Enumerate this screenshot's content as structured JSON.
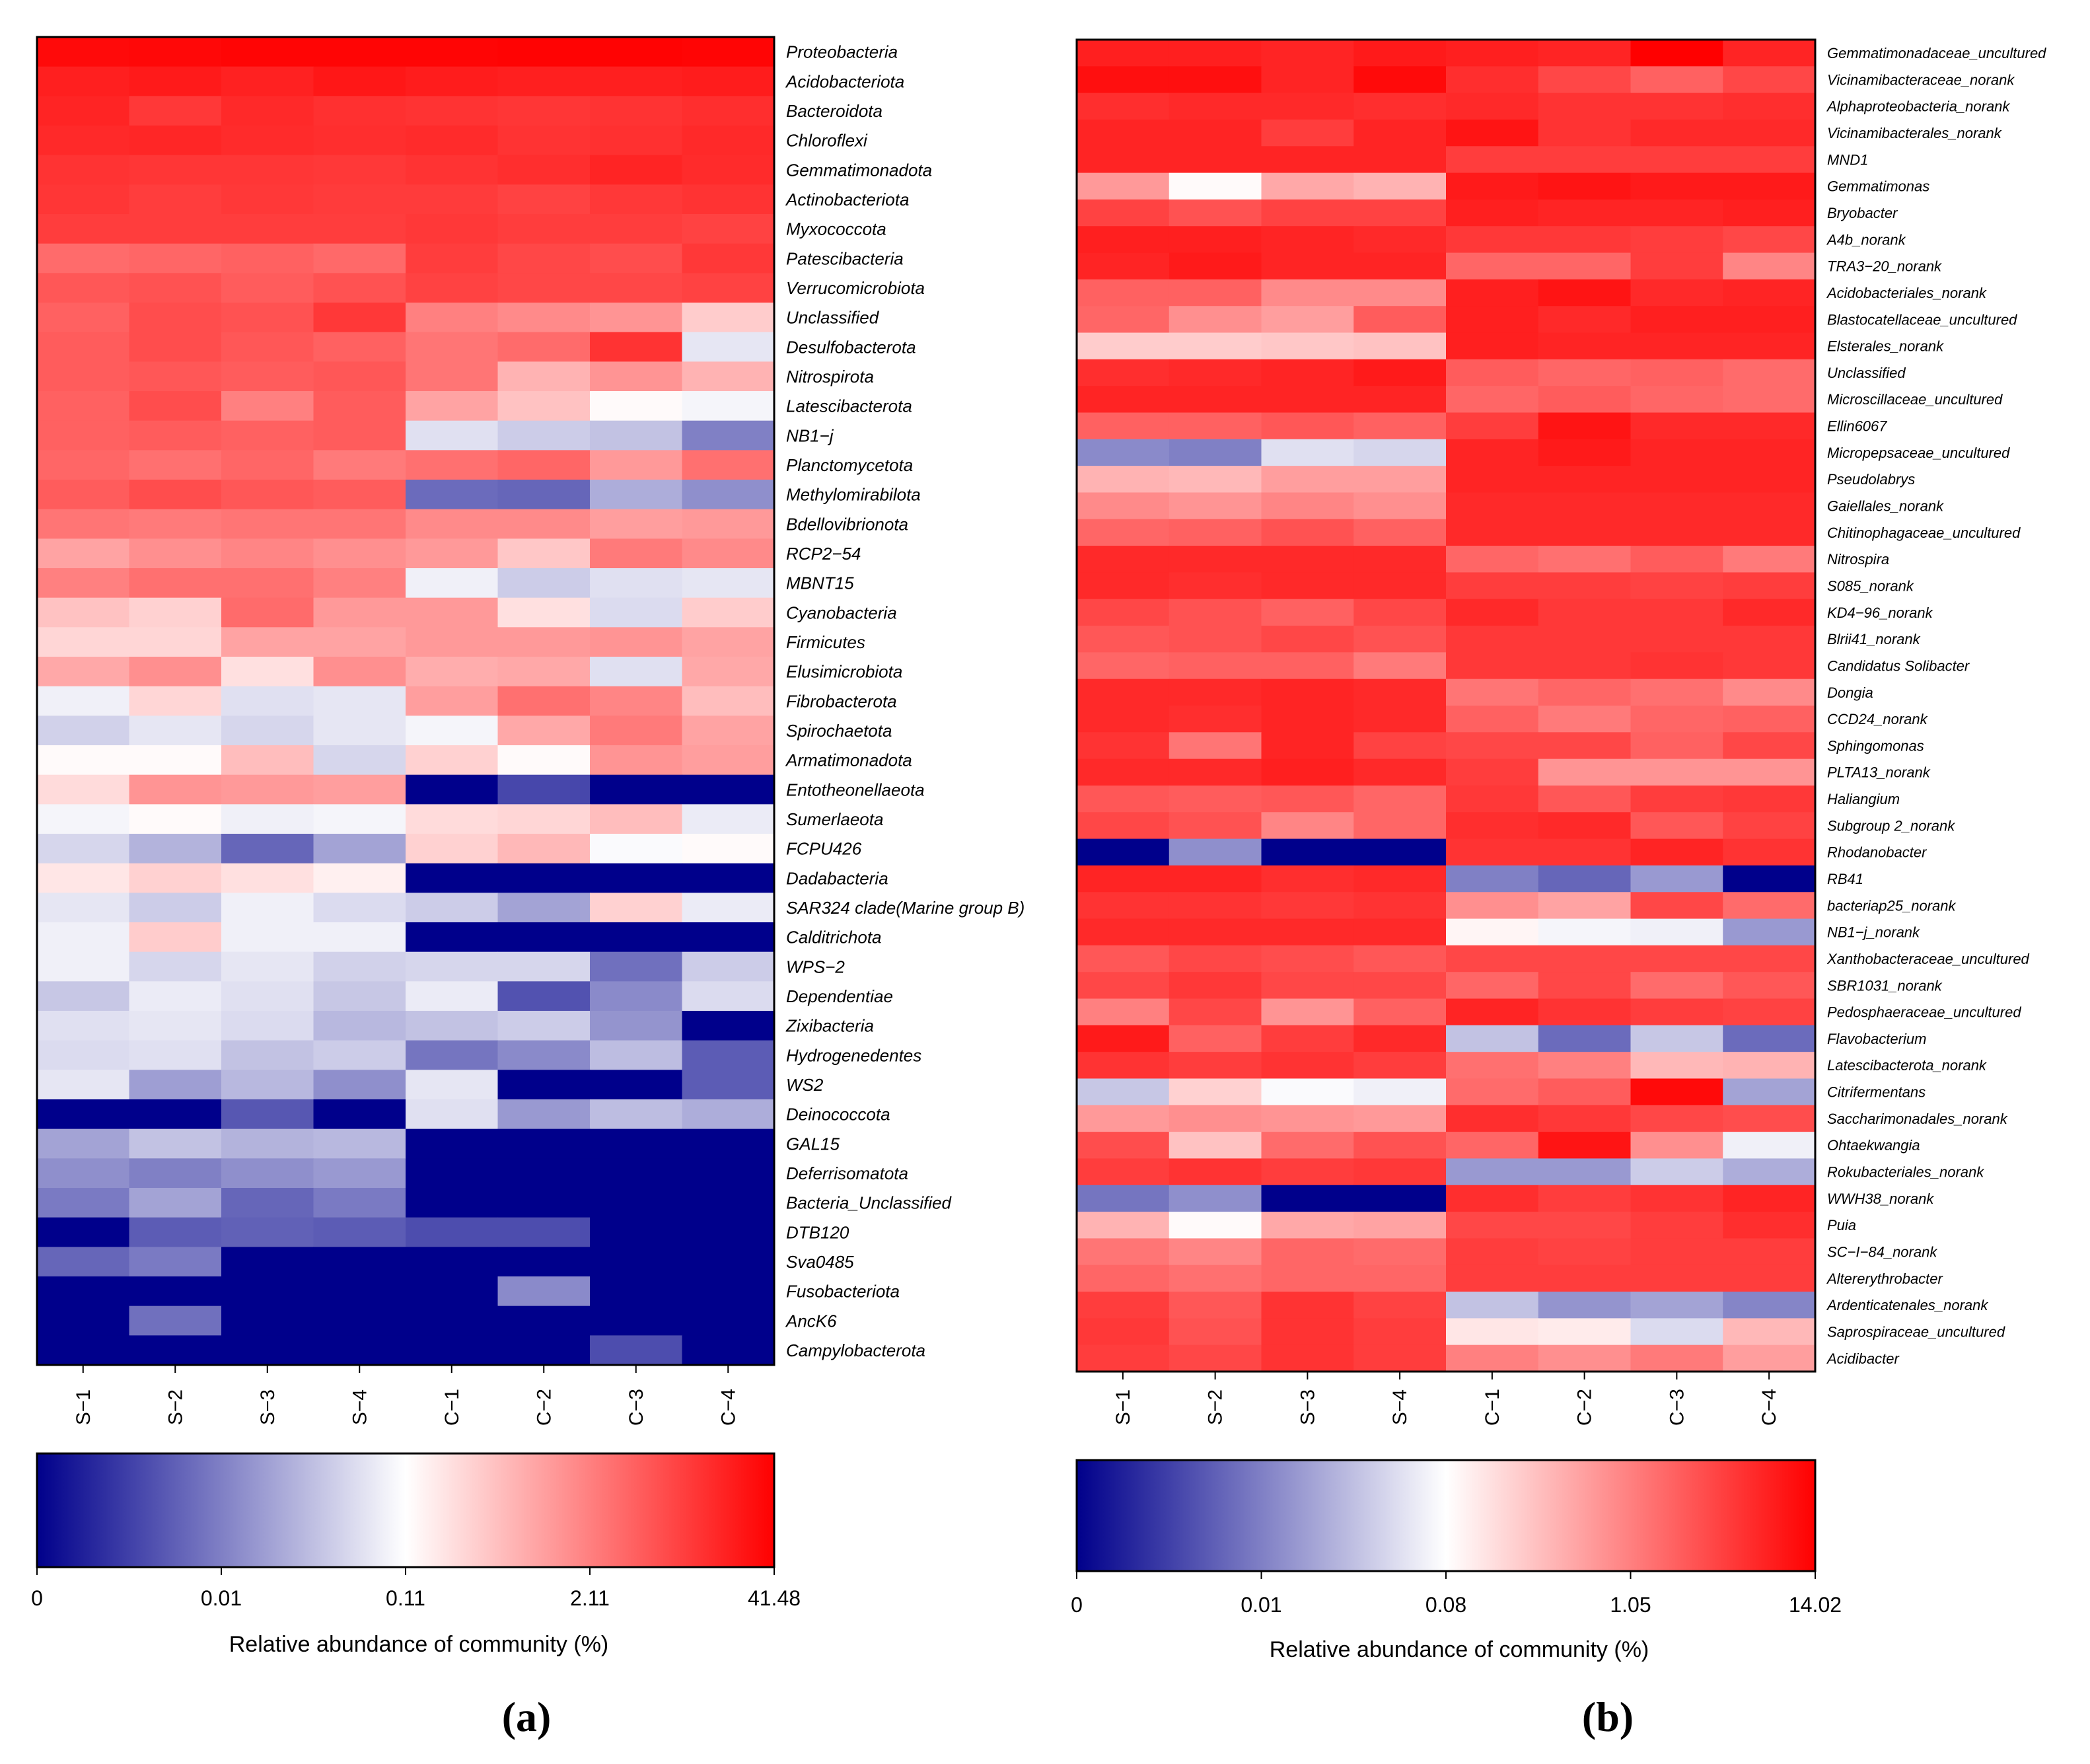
{
  "chart_data": [
    {
      "type": "heatmap",
      "panel_label": "(a)",
      "columns": [
        "S−1",
        "S−2",
        "S−3",
        "S−4",
        "C−1",
        "C−2",
        "C−3",
        "C−4"
      ],
      "rows": [
        "Proteobacteria",
        "Acidobacteriota",
        "Bacteroidota",
        "Chloroflexi",
        "Gemmatimonadota",
        "Actinobacteriota",
        "Myxococcota",
        "Patescibacteria",
        "Verrucomicrobiota",
        "Unclassified",
        "Desulfobacterota",
        "Nitrospirota",
        "Latescibacterota",
        "NB1−j",
        "Planctomycetota",
        "Methylomirabilota",
        "Bdellovibrionota",
        "RCP2−54",
        "MBNT15",
        "Cyanobacteria",
        "Firmicutes",
        "Elusimicrobiota",
        "Fibrobacterota",
        "Spirochaetota",
        "Armatimonadota",
        "Entotheonellaeota",
        "Sumerlaeota",
        "FCPU426",
        "Dadabacteria",
        "SAR324 clade(Marine group B)",
        "Calditrichota",
        "WPS−2",
        "Dependentiae",
        "Zixibacteria",
        "Hydrogenedentes",
        "WS2",
        "Deinococcota",
        "GAL15",
        "Deferrisomatota",
        "Bacteria_Unclassified",
        "DTB120",
        "Sva0485",
        "Fusobacteriota",
        "AncK6",
        "Campylobacterota"
      ],
      "values": [
        [
          0.96,
          0.97,
          0.98,
          0.98,
          0.98,
          0.99,
          0.99,
          0.98
        ],
        [
          0.88,
          0.9,
          0.87,
          0.91,
          0.89,
          0.88,
          0.88,
          0.89
        ],
        [
          0.86,
          0.78,
          0.84,
          0.81,
          0.8,
          0.79,
          0.8,
          0.82
        ],
        [
          0.84,
          0.85,
          0.83,
          0.82,
          0.83,
          0.8,
          0.81,
          0.84
        ],
        [
          0.8,
          0.79,
          0.79,
          0.78,
          0.8,
          0.82,
          0.86,
          0.83
        ],
        [
          0.79,
          0.76,
          0.78,
          0.77,
          0.77,
          0.74,
          0.78,
          0.8
        ],
        [
          0.76,
          0.76,
          0.76,
          0.76,
          0.78,
          0.76,
          0.76,
          0.74
        ],
        [
          0.58,
          0.6,
          0.62,
          0.59,
          0.76,
          0.72,
          0.7,
          0.78
        ],
        [
          0.66,
          0.68,
          0.64,
          0.68,
          0.74,
          0.72,
          0.72,
          0.74
        ],
        [
          0.62,
          0.7,
          0.68,
          0.78,
          0.5,
          0.46,
          0.42,
          0.2
        ],
        [
          0.64,
          0.7,
          0.66,
          0.62,
          0.54,
          0.58,
          0.8,
          -0.1
        ],
        [
          0.64,
          0.66,
          0.64,
          0.66,
          0.54,
          0.3,
          0.42,
          0.3
        ],
        [
          0.62,
          0.7,
          0.5,
          0.64,
          0.36,
          0.24,
          0.02,
          -0.04
        ],
        [
          0.62,
          0.64,
          0.62,
          0.64,
          -0.12,
          -0.2,
          -0.24,
          -0.5
        ],
        [
          0.6,
          0.56,
          0.6,
          0.52,
          0.56,
          0.6,
          0.4,
          0.56
        ],
        [
          0.64,
          0.7,
          0.66,
          0.64,
          -0.58,
          -0.6,
          -0.32,
          -0.44
        ],
        [
          0.54,
          0.52,
          0.54,
          0.54,
          0.46,
          0.46,
          0.38,
          0.4
        ],
        [
          0.36,
          0.44,
          0.48,
          0.44,
          0.4,
          0.22,
          0.52,
          0.46
        ],
        [
          0.5,
          0.56,
          0.56,
          0.5,
          -0.06,
          -0.2,
          -0.12,
          -0.1
        ],
        [
          0.24,
          0.18,
          0.58,
          0.4,
          0.4,
          0.12,
          -0.14,
          0.2
        ],
        [
          0.16,
          0.16,
          0.36,
          0.36,
          0.4,
          0.4,
          0.42,
          0.36
        ],
        [
          0.34,
          0.44,
          0.12,
          0.44,
          0.32,
          0.34,
          -0.12,
          0.34
        ],
        [
          -0.06,
          0.16,
          -0.12,
          -0.1,
          0.38,
          0.56,
          0.48,
          0.26
        ],
        [
          -0.18,
          -0.1,
          -0.16,
          -0.1,
          -0.04,
          0.34,
          0.52,
          0.36
        ],
        [
          0.02,
          0.02,
          0.26,
          -0.16,
          0.18,
          0.02,
          0.42,
          0.38
        ],
        [
          0.14,
          0.42,
          0.4,
          0.38,
          -1,
          -0.72,
          -1,
          -1
        ],
        [
          -0.04,
          0.02,
          -0.06,
          -0.04,
          0.14,
          0.16,
          0.26,
          -0.08
        ],
        [
          -0.16,
          -0.3,
          -0.6,
          -0.36,
          0.18,
          0.28,
          -0.02,
          0.02
        ],
        [
          0.1,
          0.18,
          0.12,
          0.06,
          -1,
          -1,
          -1,
          -1
        ],
        [
          -0.1,
          -0.2,
          -0.06,
          -0.14,
          -0.2,
          -0.36,
          0.18,
          -0.08
        ],
        [
          -0.06,
          0.2,
          -0.06,
          -0.06,
          -1,
          -1,
          -1,
          -1
        ],
        [
          -0.06,
          -0.16,
          -0.1,
          -0.18,
          -0.16,
          -0.16,
          -0.56,
          -0.2
        ],
        [
          -0.22,
          -0.08,
          -0.12,
          -0.22,
          -0.08,
          -0.68,
          -0.46,
          -0.14
        ],
        [
          -0.12,
          -0.1,
          -0.14,
          -0.28,
          -0.24,
          -0.2,
          -0.42,
          -1
        ],
        [
          -0.14,
          -0.12,
          -0.24,
          -0.2,
          -0.54,
          -0.46,
          -0.26,
          -0.64
        ],
        [
          -0.1,
          -0.38,
          -0.28,
          -0.44,
          -0.1,
          -1,
          -1,
          -0.64
        ],
        [
          -1,
          -1,
          -0.66,
          -1,
          -0.12,
          -0.4,
          -0.26,
          -0.32
        ],
        [
          -0.36,
          -0.24,
          -0.3,
          -0.28,
          -1,
          -1,
          -1,
          -1
        ],
        [
          -0.44,
          -0.5,
          -0.44,
          -0.4,
          -1,
          -1,
          -1,
          -1
        ],
        [
          -0.52,
          -0.36,
          -0.6,
          -0.52,
          -1,
          -1,
          -1,
          -1
        ],
        [
          -1,
          -0.64,
          -0.62,
          -0.64,
          -0.7,
          -0.7,
          -1,
          -1
        ],
        [
          -0.6,
          -0.52,
          -1,
          -1,
          -1,
          -1,
          -1,
          -1
        ],
        [
          -1,
          -1,
          -1,
          -1,
          -1,
          -0.46,
          -1,
          -1
        ],
        [
          -1,
          -0.56,
          -1,
          -1,
          -1,
          -1,
          -1,
          -1
        ],
        [
          -1,
          -1,
          -1,
          -1,
          -1,
          -1,
          -0.7,
          -1
        ]
      ],
      "colorbar": {
        "ticks": [
          "0",
          "0.01",
          "0.11",
          "2.11",
          "41.48"
        ],
        "label": "Relative abundance of community (%)",
        "colors": [
          "#00008b",
          "#ffffff",
          "#ff0000"
        ]
      }
    },
    {
      "type": "heatmap",
      "panel_label": "(b)",
      "columns": [
        "S−1",
        "S−2",
        "S−3",
        "S−4",
        "C−1",
        "C−2",
        "C−3",
        "C−4"
      ],
      "rows": [
        "Gemmatimonadaceae_uncultured",
        "Vicinamibacteraceae_norank",
        "Alphaproteobacteria_norank",
        "Vicinamibacterales_norank",
        "MND1",
        "Gemmatimonas",
        "Bryobacter",
        "A4b_norank",
        "TRA3−20_norank",
        "Acidobacteriales_norank",
        "Blastocatellaceae_uncultured",
        "Elsterales_norank",
        "Unclassified",
        "Microscillaceae_uncultured",
        "Ellin6067",
        "Micropepsaceae_uncultured",
        "Pseudolabrys",
        "Gaiellales_norank",
        "Chitinophagaceae_uncultured",
        "Nitrospira",
        "S085_norank",
        "KD4−96_norank",
        "Blrii41_norank",
        "Candidatus Solibacter",
        "Dongia",
        "CCD24_norank",
        "Sphingomonas",
        "PLTA13_norank",
        "Haliangium",
        "Subgroup 2_norank",
        "Rhodanobacter",
        "RB41",
        "bacteriap25_norank",
        "NB1−j_norank",
        "Xanthobacteraceae_uncultured",
        "SBR1031_norank",
        "Pedosphaeraceae_uncultured",
        "Flavobacterium",
        "Latescibacterota_norank",
        "Citrifermentans",
        "Saccharimonadales_norank",
        "Ohtaekwangia",
        "Rokubacteriales_norank",
        "WWH38_norank",
        "Puia",
        "SC−I−84_norank",
        "Altererythrobacter",
        "Ardenticatenales_norank",
        "Saprospiraceae_uncultured",
        "Acidibacter"
      ],
      "values": [
        [
          0.88,
          0.88,
          0.86,
          0.9,
          0.88,
          0.86,
          1,
          0.86
        ],
        [
          0.94,
          0.94,
          0.86,
          0.96,
          0.82,
          0.72,
          0.62,
          0.72
        ],
        [
          0.82,
          0.84,
          0.84,
          0.82,
          0.84,
          0.8,
          0.8,
          0.82
        ],
        [
          0.86,
          0.86,
          0.76,
          0.86,
          0.92,
          0.8,
          0.84,
          0.84
        ],
        [
          0.86,
          0.86,
          0.86,
          0.86,
          0.76,
          0.76,
          0.76,
          0.76
        ],
        [
          0.4,
          0.02,
          0.34,
          0.3,
          0.9,
          0.92,
          0.9,
          0.9
        ],
        [
          0.74,
          0.68,
          0.74,
          0.74,
          0.88,
          0.86,
          0.86,
          0.88
        ],
        [
          0.88,
          0.88,
          0.86,
          0.84,
          0.78,
          0.78,
          0.76,
          0.72
        ],
        [
          0.86,
          0.9,
          0.86,
          0.86,
          0.6,
          0.6,
          0.76,
          0.48
        ],
        [
          0.62,
          0.62,
          0.46,
          0.46,
          0.88,
          0.92,
          0.84,
          0.86
        ],
        [
          0.6,
          0.44,
          0.38,
          0.64,
          0.88,
          0.84,
          0.88,
          0.88
        ],
        [
          0.2,
          0.2,
          0.22,
          0.24,
          0.88,
          0.86,
          0.86,
          0.86
        ],
        [
          0.82,
          0.84,
          0.86,
          0.9,
          0.64,
          0.6,
          0.62,
          0.58
        ],
        [
          0.86,
          0.86,
          0.86,
          0.86,
          0.6,
          0.64,
          0.6,
          0.58
        ],
        [
          0.62,
          0.62,
          0.66,
          0.62,
          0.76,
          0.92,
          0.84,
          0.84
        ],
        [
          -0.46,
          -0.5,
          -0.12,
          -0.16,
          0.86,
          0.9,
          0.86,
          0.86
        ],
        [
          0.3,
          0.28,
          0.38,
          0.38,
          0.86,
          0.86,
          0.86,
          0.86
        ],
        [
          0.46,
          0.42,
          0.48,
          0.44,
          0.84,
          0.84,
          0.84,
          0.84
        ],
        [
          0.6,
          0.62,
          0.68,
          0.62,
          0.84,
          0.84,
          0.84,
          0.84
        ],
        [
          0.84,
          0.84,
          0.84,
          0.84,
          0.6,
          0.56,
          0.64,
          0.52
        ],
        [
          0.84,
          0.82,
          0.84,
          0.84,
          0.76,
          0.76,
          0.74,
          0.76
        ],
        [
          0.72,
          0.68,
          0.62,
          0.72,
          0.84,
          0.78,
          0.78,
          0.84
        ],
        [
          0.66,
          0.68,
          0.72,
          0.68,
          0.78,
          0.78,
          0.78,
          0.78
        ],
        [
          0.6,
          0.62,
          0.62,
          0.52,
          0.78,
          0.78,
          0.8,
          0.78
        ],
        [
          0.84,
          0.84,
          0.86,
          0.84,
          0.54,
          0.6,
          0.56,
          0.46
        ],
        [
          0.84,
          0.82,
          0.86,
          0.84,
          0.62,
          0.52,
          0.6,
          0.62
        ],
        [
          0.8,
          0.54,
          0.86,
          0.74,
          0.72,
          0.72,
          0.62,
          0.72
        ],
        [
          0.84,
          0.84,
          0.88,
          0.84,
          0.76,
          0.42,
          0.42,
          0.42
        ],
        [
          0.66,
          0.64,
          0.66,
          0.6,
          0.78,
          0.66,
          0.76,
          0.78
        ],
        [
          0.72,
          0.68,
          0.48,
          0.6,
          0.82,
          0.84,
          0.66,
          0.74
        ],
        [
          -1,
          -0.44,
          -1,
          -1,
          0.8,
          0.8,
          0.86,
          0.8
        ],
        [
          0.86,
          0.86,
          0.82,
          0.84,
          -0.5,
          -0.6,
          -0.4,
          -1
        ],
        [
          0.8,
          0.8,
          0.78,
          0.8,
          0.44,
          0.36,
          0.72,
          0.58
        ],
        [
          0.84,
          0.84,
          0.84,
          0.84,
          0.04,
          -0.04,
          -0.06,
          -0.4
        ],
        [
          0.66,
          0.72,
          0.7,
          0.66,
          0.72,
          0.72,
          0.72,
          0.72
        ],
        [
          0.72,
          0.78,
          0.72,
          0.72,
          0.6,
          0.72,
          0.58,
          0.66
        ],
        [
          0.5,
          0.72,
          0.42,
          0.62,
          0.86,
          0.8,
          0.76,
          0.74
        ],
        [
          0.9,
          0.62,
          0.76,
          0.84,
          -0.24,
          -0.58,
          -0.22,
          -0.58
        ],
        [
          0.8,
          0.76,
          0.8,
          0.76,
          0.56,
          0.5,
          0.28,
          0.3
        ],
        [
          -0.22,
          0.18,
          -0.02,
          -0.06,
          0.58,
          0.64,
          0.96,
          -0.36
        ],
        [
          0.4,
          0.44,
          0.42,
          0.4,
          0.82,
          0.78,
          0.72,
          0.7
        ],
        [
          0.7,
          0.24,
          0.58,
          0.68,
          0.6,
          0.92,
          0.44,
          -0.06
        ],
        [
          0.76,
          0.8,
          0.76,
          0.78,
          -0.4,
          -0.4,
          -0.2,
          -0.32
        ],
        [
          -0.54,
          -0.44,
          -1,
          -1,
          0.82,
          0.76,
          0.8,
          0.86
        ],
        [
          0.3,
          0.02,
          0.34,
          0.36,
          0.72,
          0.72,
          0.76,
          0.82
        ],
        [
          0.54,
          0.48,
          0.6,
          0.58,
          0.76,
          0.74,
          0.76,
          0.76
        ],
        [
          0.6,
          0.56,
          0.6,
          0.6,
          0.76,
          0.76,
          0.76,
          0.76
        ],
        [
          0.76,
          0.66,
          0.8,
          0.74,
          -0.24,
          -0.42,
          -0.36,
          -0.48
        ],
        [
          0.78,
          0.68,
          0.8,
          0.76,
          0.1,
          0.08,
          -0.14,
          0.28
        ],
        [
          0.76,
          0.72,
          0.8,
          0.76,
          0.5,
          0.44,
          0.52,
          0.38
        ]
      ],
      "colorbar": {
        "ticks": [
          "0",
          "0.01",
          "0.08",
          "1.05",
          "14.02"
        ],
        "label": "Relative abundance of community (%)",
        "colors": [
          "#00008b",
          "#ffffff",
          "#ff0000"
        ]
      }
    }
  ]
}
